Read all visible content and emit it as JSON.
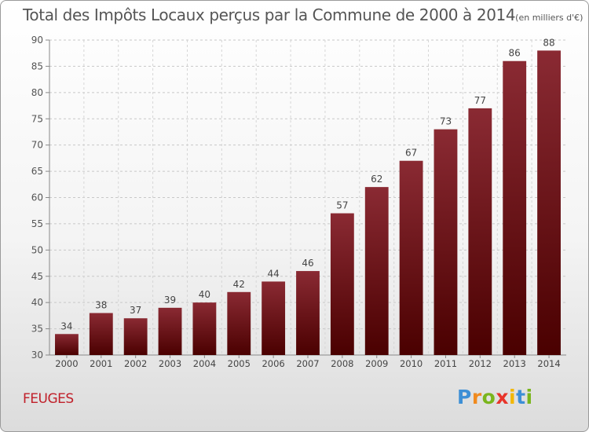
{
  "title": "Total des Impôts Locaux perçus par la Commune de 2000 à 2014",
  "title_unit": "(en milliers d'€)",
  "commune": "FEUGES",
  "logo": {
    "letters": [
      "P",
      "r",
      "o",
      "x",
      "i",
      "t",
      "i"
    ],
    "colors": [
      "#3d8fd6",
      "#f08a1e",
      "#7ab51d",
      "#e8342a",
      "#f2b705",
      "#3d8fd6",
      "#7ab51d"
    ]
  },
  "chart_data": {
    "type": "bar",
    "title": "Total des Impôts Locaux perçus par la Commune de 2000 à 2014",
    "categories": [
      "2000",
      "2001",
      "2002",
      "2003",
      "2004",
      "2005",
      "2006",
      "2007",
      "2008",
      "2009",
      "2010",
      "2011",
      "2012",
      "2013",
      "2014"
    ],
    "values": [
      34,
      38,
      37,
      39,
      40,
      42,
      44,
      46,
      57,
      62,
      67,
      73,
      77,
      86,
      88
    ],
    "ylim": [
      30,
      90
    ],
    "yticks": [
      30,
      35,
      40,
      45,
      50,
      55,
      60,
      65,
      70,
      75,
      80,
      85,
      90
    ],
    "grid": true,
    "bar_color": "#7a1a20"
  }
}
